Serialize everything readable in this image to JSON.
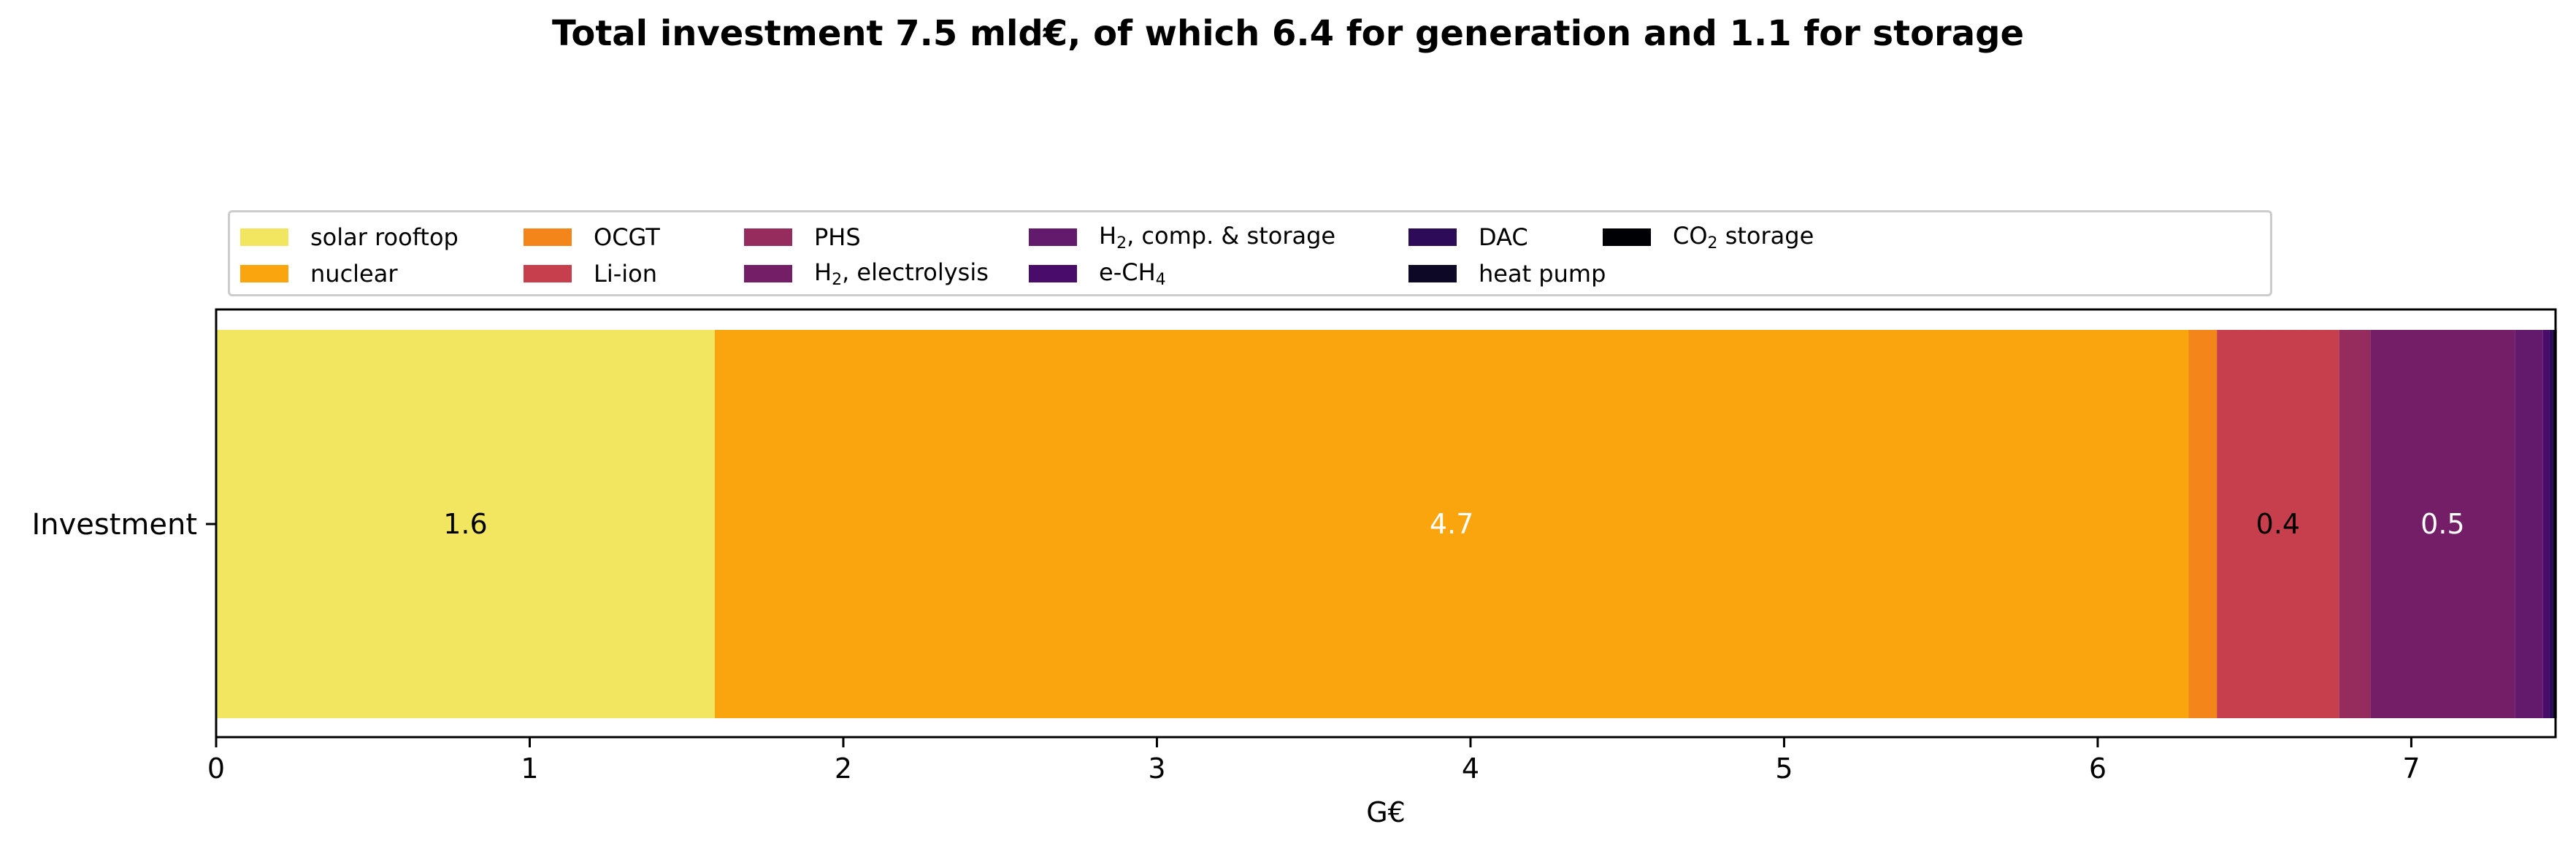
{
  "chart_data": {
    "type": "bar",
    "orientation": "horizontal",
    "stacked": true,
    "title": "Total investment 7.5 mld€, of which 6.4 for generation and 1.1 for storage",
    "xlabel": "G€",
    "ylabel": "",
    "categories": [
      "Investment"
    ],
    "xlim": [
      0,
      7.46
    ],
    "xticks": [
      "0",
      "1",
      "2",
      "3",
      "4",
      "5",
      "6",
      "7"
    ],
    "grid": false,
    "legend_position": "top",
    "series": [
      {
        "name": "solar rooftop",
        "label_main": "solar rooftop",
        "label_sub": "",
        "label_post": "",
        "values": [
          1.59
        ],
        "color": "#f2e661",
        "bar_label": "1.6",
        "label_color": "#000000"
      },
      {
        "name": "nuclear",
        "label_main": "nuclear",
        "label_sub": "",
        "label_post": "",
        "values": [
          4.7
        ],
        "color": "#faa40e",
        "bar_label": "4.7",
        "label_color": "#ffffff"
      },
      {
        "name": "OCGT",
        "label_main": "OCGT",
        "label_sub": "",
        "label_post": "",
        "values": [
          0.09
        ],
        "color": "#f3851b",
        "bar_label": "",
        "label_color": "#000000"
      },
      {
        "name": "Li-ion",
        "label_main": "Li-ion",
        "label_sub": "",
        "label_post": "",
        "values": [
          0.39
        ],
        "color": "#c73e4c",
        "bar_label": "0.4",
        "label_color": "#000000"
      },
      {
        "name": "PHS",
        "label_main": "PHS",
        "label_sub": "",
        "label_post": "",
        "values": [
          0.1
        ],
        "color": "#962b5d",
        "bar_label": "",
        "label_color": "#000000"
      },
      {
        "name": "H2, electrolysis",
        "label_main": "H",
        "label_sub": "2",
        "label_post": ", electrolysis",
        "values": [
          0.46
        ],
        "color": "#741e67",
        "bar_label": "0.5",
        "label_color": "#ffffff"
      },
      {
        "name": "H2, comp. & storage",
        "label_main": "H",
        "label_sub": "2",
        "label_post": ", comp. & storage",
        "values": [
          0.09
        ],
        "color": "#641a6c",
        "bar_label": "",
        "label_color": "#ffffff"
      },
      {
        "name": "e-CH4",
        "label_main": "e-CH",
        "label_sub": "4",
        "label_post": "",
        "values": [
          0.02
        ],
        "color": "#4a0c6b",
        "bar_label": "",
        "label_color": "#ffffff"
      },
      {
        "name": "DAC",
        "label_main": "DAC",
        "label_sub": "",
        "label_post": "",
        "values": [
          0.012
        ],
        "color": "#2d0b59",
        "bar_label": "",
        "label_color": "#ffffff"
      },
      {
        "name": "heat pump",
        "label_main": "heat pump",
        "label_sub": "",
        "label_post": "",
        "values": [
          0.008
        ],
        "color": "#0c0826",
        "bar_label": "",
        "label_color": "#ffffff"
      },
      {
        "name": "CO2 storage",
        "label_main": "CO",
        "label_sub": "2",
        "label_post": " storage",
        "values": [
          0.004
        ],
        "color": "#000004",
        "bar_label": "",
        "label_color": "#ffffff"
      }
    ]
  }
}
